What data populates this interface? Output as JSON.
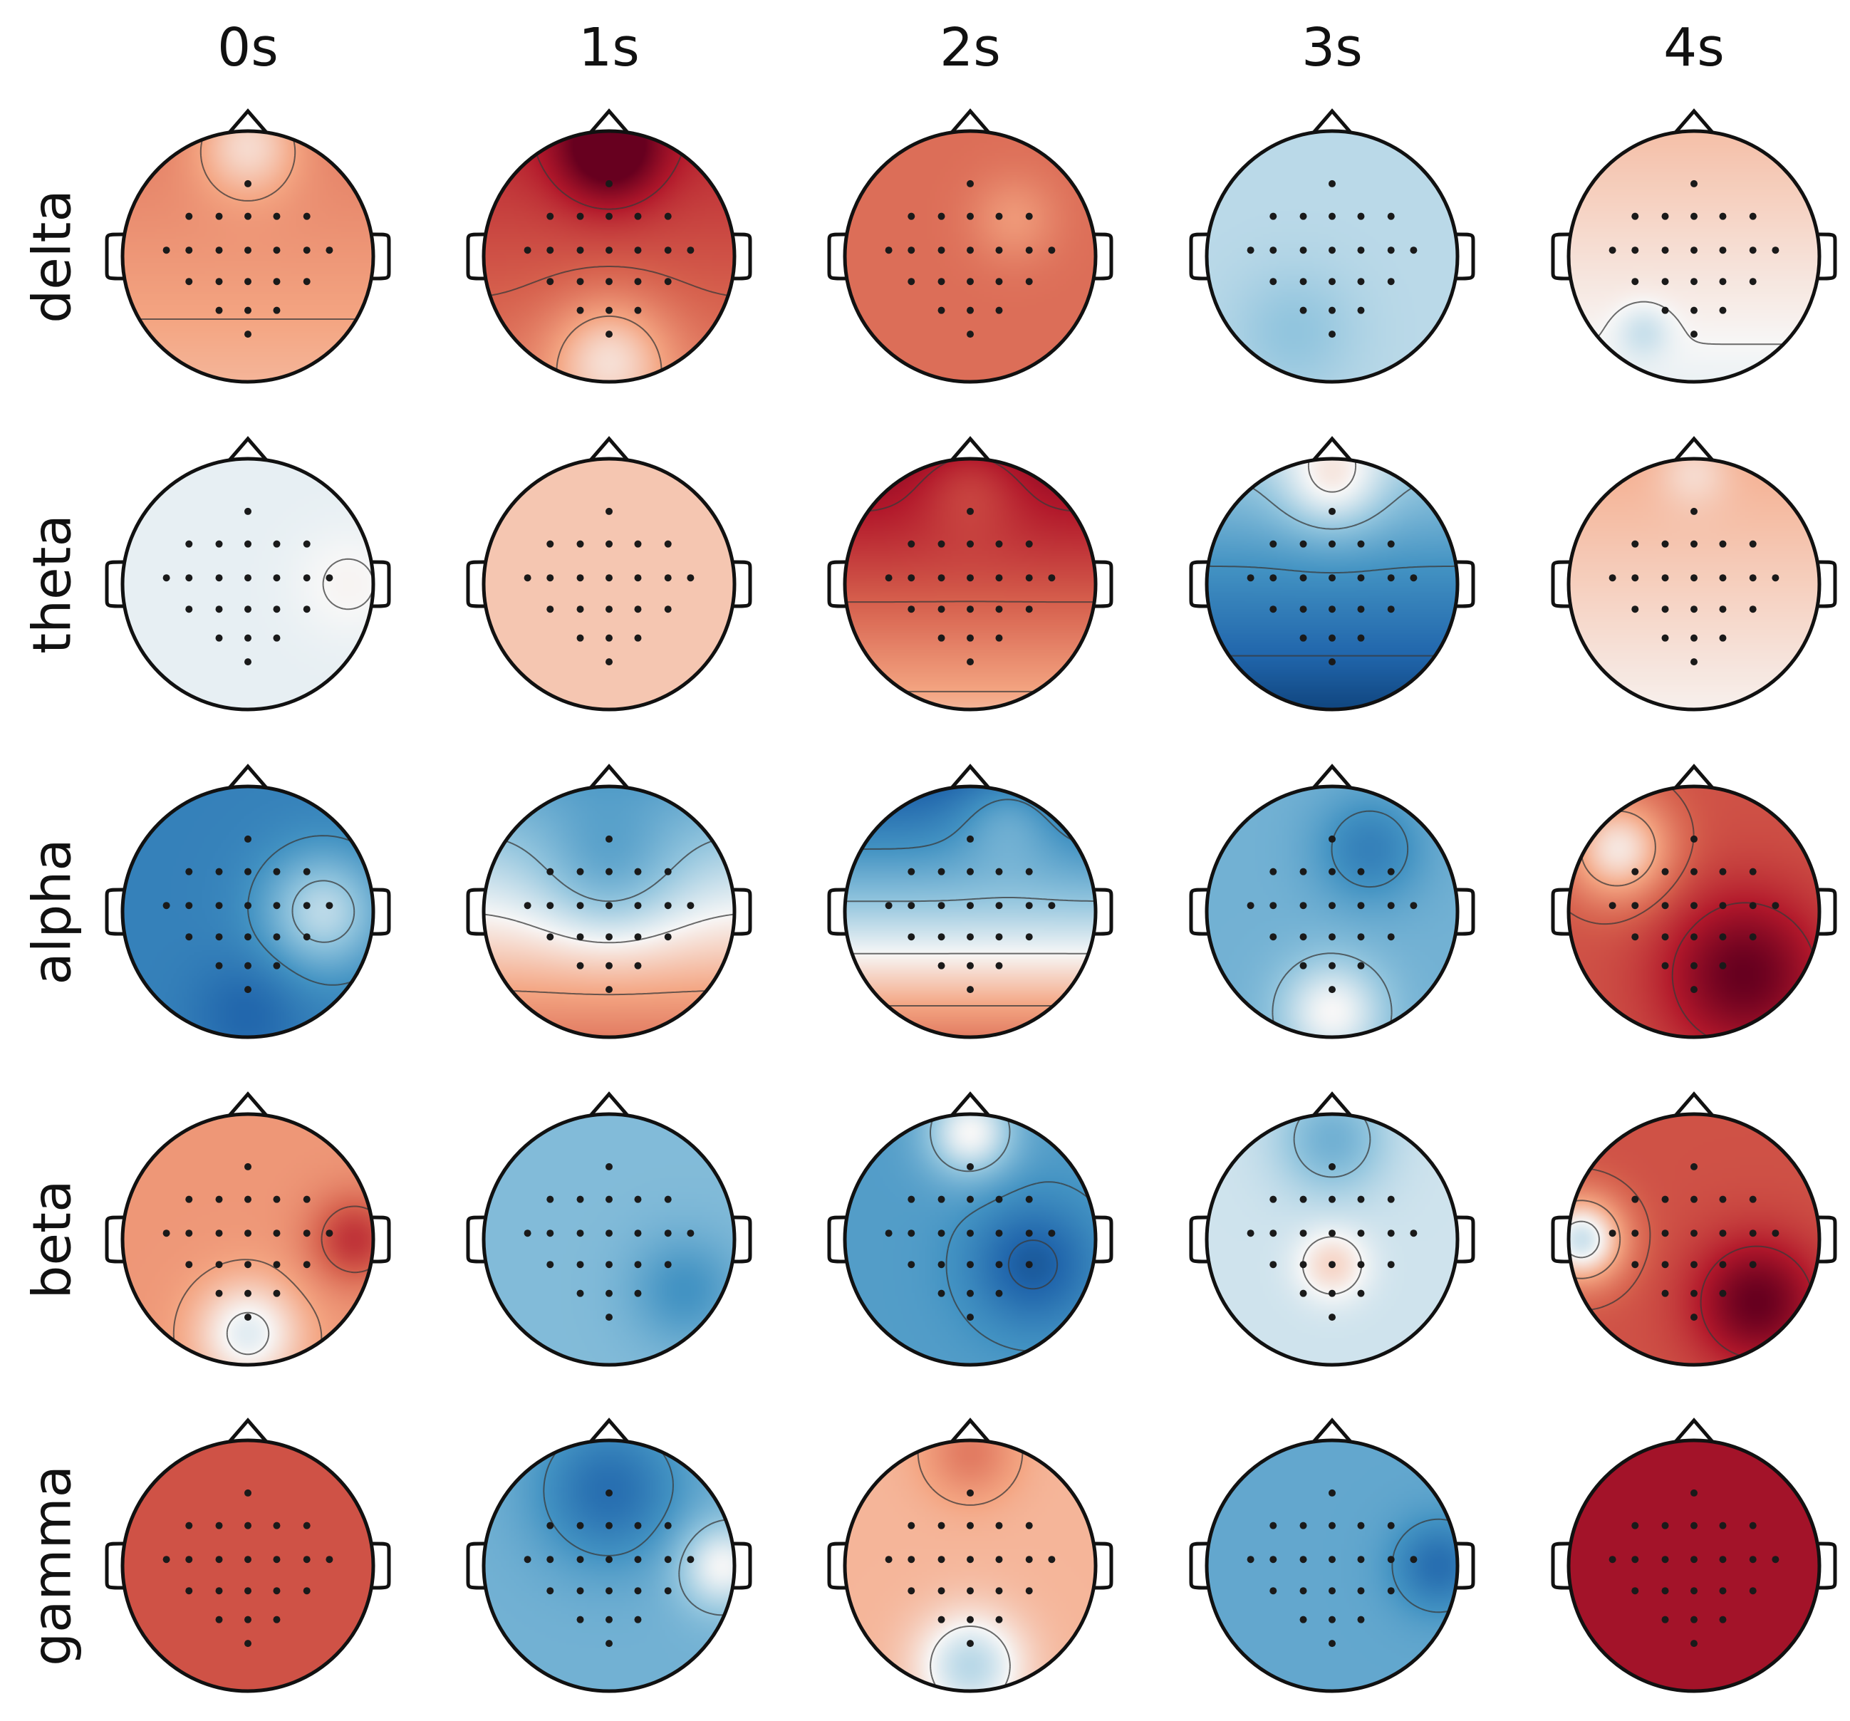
{
  "chart_data": {
    "type": "heatmap",
    "title": "",
    "description_kind": "EEG scalp topography grid (band x time)",
    "columns": [
      "0s",
      "1s",
      "2s",
      "3s",
      "4s"
    ],
    "rows": [
      "delta",
      "theta",
      "alpha",
      "beta",
      "gamma"
    ],
    "colormap": "RdBu_r",
    "value_range": [
      -1,
      1
    ],
    "colors": {
      "negative": "#053061",
      "neutral": "#f7f7f7",
      "positive": "#67001f"
    },
    "maps": [
      [
        {
          "base": 0.3,
          "ap": 0.1,
          "lr": 0.0,
          "blobs": [
            [
              0.0,
              0.9,
              0.3,
              -0.3
            ]
          ]
        },
        {
          "base": 0.55,
          "ap": 0.15,
          "lr": 0.0,
          "blobs": [
            [
              0.0,
              0.85,
              0.3,
              0.5
            ],
            [
              0.0,
              -0.8,
              0.35,
              -0.35
            ]
          ]
        },
        {
          "base": 0.45,
          "ap": 0.0,
          "lr": 0.0,
          "blobs": [
            [
              0.35,
              0.3,
              0.25,
              -0.15
            ]
          ]
        },
        {
          "base": -0.15,
          "ap": 0.0,
          "lr": 0.0,
          "blobs": [
            [
              -0.3,
              -0.6,
              0.35,
              -0.1
            ]
          ]
        },
        {
          "base": 0.07,
          "ap": 0.1,
          "lr": 0.0,
          "blobs": [
            [
              -0.4,
              -0.6,
              0.15,
              -0.12
            ]
          ]
        }
      ],
      [
        {
          "base": -0.04,
          "ap": 0.0,
          "lr": 0.0,
          "blobs": [
            [
              0.8,
              0.0,
              0.3,
              0.05
            ]
          ]
        },
        {
          "base": 0.15,
          "ap": 0.0,
          "lr": 0.0,
          "blobs": []
        },
        {
          "base": 0.55,
          "ap": 0.35,
          "lr": 0.0,
          "blobs": [
            [
              0.0,
              0.8,
              0.3,
              -0.2
            ]
          ]
        },
        {
          "base": -0.55,
          "ap": 0.35,
          "lr": 0.0,
          "blobs": [
            [
              0.0,
              0.8,
              0.3,
              0.3
            ]
          ]
        },
        {
          "base": 0.12,
          "ap": 0.1,
          "lr": 0.0,
          "blobs": [
            [
              0.0,
              0.9,
              0.2,
              -0.12
            ]
          ]
        }
      ],
      [
        {
          "base": -0.6,
          "ap": 0.0,
          "lr": 0.0,
          "blobs": [
            [
              0.6,
              0.0,
              0.35,
              0.45
            ],
            [
              0.0,
              -0.8,
              0.3,
              -0.15
            ]
          ]
        },
        {
          "base": 0.0,
          "ap": -0.4,
          "lr": 0.0,
          "blobs": [
            [
              0.0,
              0.3,
              0.4,
              -0.25
            ]
          ]
        },
        {
          "base": -0.2,
          "ap": -0.6,
          "lr": 0.0,
          "blobs": [
            [
              0.3,
              0.8,
              0.3,
              0.25
            ]
          ]
        },
        {
          "base": -0.35,
          "ap": 0.0,
          "lr": 0.0,
          "blobs": [
            [
              0.0,
              -0.8,
              0.3,
              0.35
            ],
            [
              0.3,
              0.5,
              0.3,
              -0.25
            ]
          ]
        },
        {
          "base": 0.55,
          "ap": 0.0,
          "lr": 0.0,
          "blobs": [
            [
              0.4,
              -0.5,
              0.45,
              0.45
            ],
            [
              -0.6,
              0.5,
              0.3,
              -0.5
            ]
          ]
        }
      ],
      [
        {
          "base": 0.3,
          "ap": 0.0,
          "lr": 0.0,
          "blobs": [
            [
              0.85,
              0.0,
              0.25,
              0.35
            ],
            [
              0.0,
              -0.75,
              0.3,
              -0.35
            ]
          ]
        },
        {
          "base": -0.3,
          "ap": 0.0,
          "lr": 0.0,
          "blobs": [
            [
              0.6,
              -0.4,
              0.3,
              -0.2
            ]
          ]
        },
        {
          "base": -0.45,
          "ap": 0.0,
          "lr": 0.0,
          "blobs": [
            [
              0.5,
              -0.2,
              0.35,
              -0.35
            ],
            [
              0.0,
              0.85,
              0.25,
              0.45
            ]
          ]
        },
        {
          "base": -0.1,
          "ap": 0.0,
          "lr": 0.0,
          "blobs": [
            [
              0.0,
              0.8,
              0.3,
              -0.25
            ],
            [
              0.0,
              -0.2,
              0.2,
              0.2
            ]
          ]
        },
        {
          "base": 0.55,
          "ap": 0.0,
          "lr": 0.0,
          "blobs": [
            [
              0.5,
              -0.5,
              0.35,
              0.45
            ],
            [
              -0.9,
              0.0,
              0.25,
              -0.65
            ]
          ]
        }
      ],
      [
        {
          "base": 0.55,
          "ap": 0.0,
          "lr": 0.0,
          "blobs": []
        },
        {
          "base": -0.35,
          "ap": 0.0,
          "lr": 0.0,
          "blobs": [
            [
              0.0,
              0.6,
              0.4,
              -0.35
            ],
            [
              0.9,
              0.0,
              0.25,
              0.35
            ]
          ]
        },
        {
          "base": 0.2,
          "ap": 0.0,
          "lr": 0.0,
          "blobs": [
            [
              0.0,
              0.9,
              0.25,
              0.2
            ],
            [
              0.0,
              -0.8,
              0.3,
              -0.35
            ]
          ]
        },
        {
          "base": -0.4,
          "ap": 0.0,
          "lr": 0.0,
          "blobs": [
            [
              0.85,
              0.0,
              0.25,
              -0.3
            ]
          ]
        },
        {
          "base": 0.8,
          "ap": 0.0,
          "lr": 0.0,
          "blobs": []
        }
      ]
    ]
  }
}
